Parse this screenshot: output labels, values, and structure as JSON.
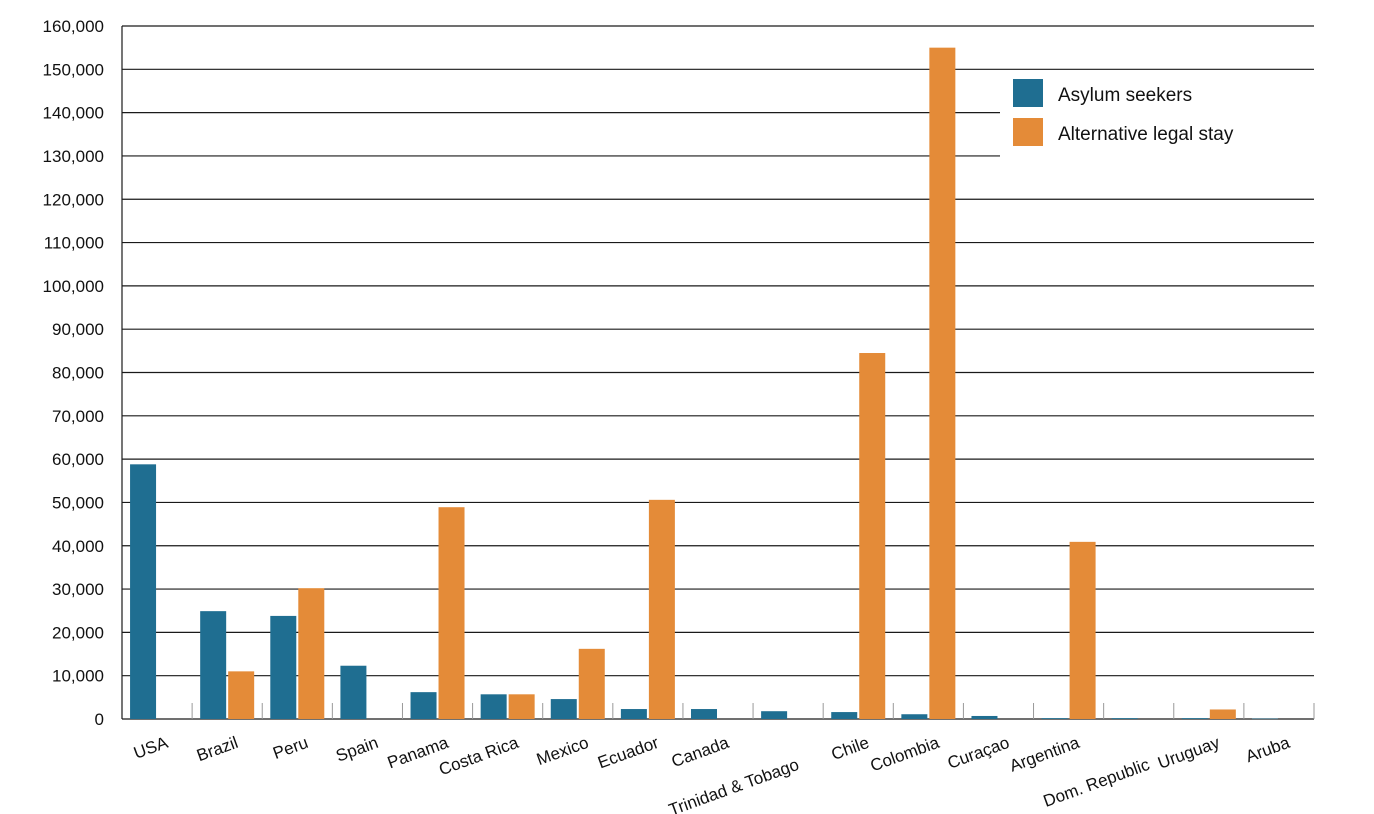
{
  "chart_data": {
    "type": "bar",
    "title": "",
    "xlabel": "",
    "ylabel": "",
    "ylim": [
      0,
      160000
    ],
    "yticks": [
      0,
      10000,
      20000,
      30000,
      40000,
      50000,
      60000,
      70000,
      80000,
      90000,
      100000,
      110000,
      120000,
      130000,
      140000,
      150000,
      160000
    ],
    "ytick_labels": [
      "0",
      "10,000",
      "20,000",
      "30,000",
      "40,000",
      "50,000",
      "60,000",
      "70,000",
      "80,000",
      "90,000",
      "100,000",
      "110,000",
      "120,000",
      "130,000",
      "140,000",
      "150,000",
      "160,000"
    ],
    "grid": true,
    "legend_position": "top-right",
    "categories": [
      "USA",
      "Brazil",
      "Peru",
      "Spain",
      "Panama",
      "Costa Rica",
      "Mexico",
      "Ecuador",
      "Canada",
      "Trinidad & Tobago",
      "Chile",
      "Colombia",
      "Curaçao",
      "Argentina",
      "Dom. Republic",
      "Uruguay",
      "Aruba"
    ],
    "series": [
      {
        "name": "Asylum seekers",
        "color": "#1f6e91",
        "values": [
          58800,
          24900,
          23800,
          12300,
          6200,
          5700,
          4600,
          2300,
          2300,
          1800,
          1600,
          1100,
          700,
          200,
          200,
          200,
          100
        ]
      },
      {
        "name": "Alternative legal stay",
        "color": "#e48b38",
        "values": [
          0,
          11000,
          30200,
          0,
          48900,
          5700,
          16200,
          50600,
          0,
          0,
          84500,
          155000,
          0,
          40900,
          0,
          2200,
          0
        ]
      }
    ]
  }
}
